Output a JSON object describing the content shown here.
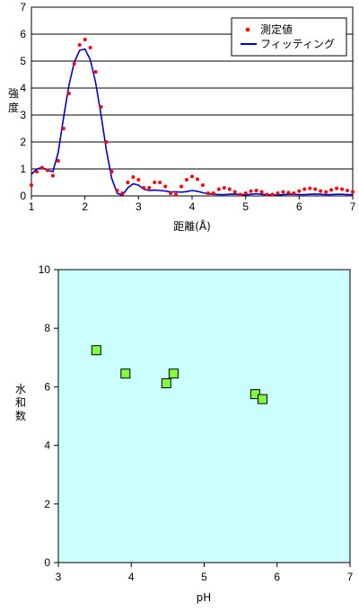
{
  "chart_data": [
    {
      "type": "line",
      "xlabel": "距離(Å)",
      "ylabel": "強度",
      "xlim": [
        1,
        7
      ],
      "ylim": [
        0,
        7
      ],
      "xticks": [
        "1",
        "2",
        "3",
        "4",
        "5",
        "6",
        "7"
      ],
      "yticks": [
        "0",
        "1",
        "2",
        "3",
        "4",
        "5",
        "6",
        "7"
      ],
      "grid": "horizontal",
      "legend_position": "top-right",
      "series": [
        {
          "name": "測定値",
          "style": "dots",
          "color": "#ff0000",
          "x": [
            1.0,
            1.1,
            1.2,
            1.3,
            1.4,
            1.5,
            1.6,
            1.7,
            1.8,
            1.9,
            2.0,
            2.1,
            2.2,
            2.3,
            2.4,
            2.5,
            2.6,
            2.7,
            2.8,
            2.9,
            3.0,
            3.1,
            3.2,
            3.3,
            3.4,
            3.5,
            3.6,
            3.7,
            3.8,
            3.9,
            4.0,
            4.1,
            4.2,
            4.3,
            4.4,
            4.5,
            4.6,
            4.7,
            4.8,
            4.9,
            5.0,
            5.1,
            5.2,
            5.3,
            5.4,
            5.5,
            5.6,
            5.7,
            5.8,
            5.9,
            6.0,
            6.1,
            6.2,
            6.3,
            6.4,
            6.5,
            6.6,
            6.7,
            6.8,
            6.9,
            7.0
          ],
          "values": [
            0.4,
            0.9,
            1.05,
            0.95,
            0.75,
            1.3,
            2.5,
            3.8,
            4.9,
            5.6,
            5.8,
            5.5,
            4.6,
            3.3,
            2.0,
            0.9,
            0.2,
            0.1,
            0.5,
            0.7,
            0.6,
            0.3,
            0.3,
            0.5,
            0.5,
            0.35,
            0.1,
            0.05,
            0.35,
            0.6,
            0.72,
            0.62,
            0.4,
            0.1,
            0.1,
            0.25,
            0.3,
            0.25,
            0.15,
            0.05,
            0.1,
            0.18,
            0.2,
            0.15,
            0.05,
            0.05,
            0.1,
            0.15,
            0.12,
            0.1,
            0.18,
            0.25,
            0.28,
            0.25,
            0.18,
            0.15,
            0.22,
            0.28,
            0.25,
            0.2,
            0.15
          ]
        },
        {
          "name": "フィッティング",
          "style": "line",
          "color": "#0000cc",
          "x": [
            1.0,
            1.1,
            1.2,
            1.3,
            1.4,
            1.5,
            1.6,
            1.7,
            1.8,
            1.9,
            2.0,
            2.1,
            2.2,
            2.3,
            2.4,
            2.5,
            2.6,
            2.7,
            2.8,
            2.9,
            3.0,
            3.1,
            3.2,
            3.3,
            3.4,
            3.5,
            3.6,
            3.7,
            3.8,
            3.9,
            4.0,
            4.1,
            4.2,
            4.3,
            4.4,
            4.5,
            4.6,
            4.7,
            4.8,
            4.9,
            5.0,
            5.1,
            5.2,
            5.3,
            5.4,
            5.5,
            5.6,
            5.7,
            5.8,
            5.9,
            6.0,
            6.1,
            6.2,
            6.3,
            6.4,
            6.5,
            6.6,
            6.7,
            6.8,
            6.9,
            7.0
          ],
          "values": [
            0.8,
            1.0,
            1.05,
            0.95,
            0.9,
            1.6,
            2.9,
            4.1,
            4.95,
            5.4,
            5.45,
            5.05,
            4.2,
            3.0,
            1.7,
            0.65,
            0.1,
            0.02,
            0.3,
            0.45,
            0.4,
            0.25,
            0.2,
            0.22,
            0.2,
            0.18,
            0.15,
            0.15,
            0.14,
            0.16,
            0.2,
            0.17,
            0.12,
            0.08,
            0.06,
            0.05,
            0.05,
            0.06,
            0.07,
            0.05,
            0.04,
            0.06,
            0.08,
            0.06,
            0.04,
            0.03,
            0.03,
            0.05,
            0.06,
            0.06,
            0.05,
            0.05,
            0.06,
            0.07,
            0.06,
            0.05,
            0.05,
            0.06,
            0.06,
            0.05,
            0.05
          ]
        }
      ]
    },
    {
      "type": "scatter",
      "xlabel": "pH",
      "ylabel": "水和数",
      "xlim": [
        3,
        7
      ],
      "ylim": [
        0,
        10
      ],
      "xticks": [
        "3",
        "4",
        "5",
        "6",
        "7"
      ],
      "yticks": [
        "0",
        "2",
        "4",
        "6",
        "8",
        "10"
      ],
      "grid": false,
      "background": "#ccffff",
      "marker_color": "#80ff40",
      "series": [
        {
          "x": [
            3.52,
            3.92,
            4.48,
            4.58,
            5.7,
            5.8
          ],
          "y": [
            7.25,
            6.45,
            6.12,
            6.45,
            5.75,
            5.58
          ]
        }
      ]
    }
  ]
}
